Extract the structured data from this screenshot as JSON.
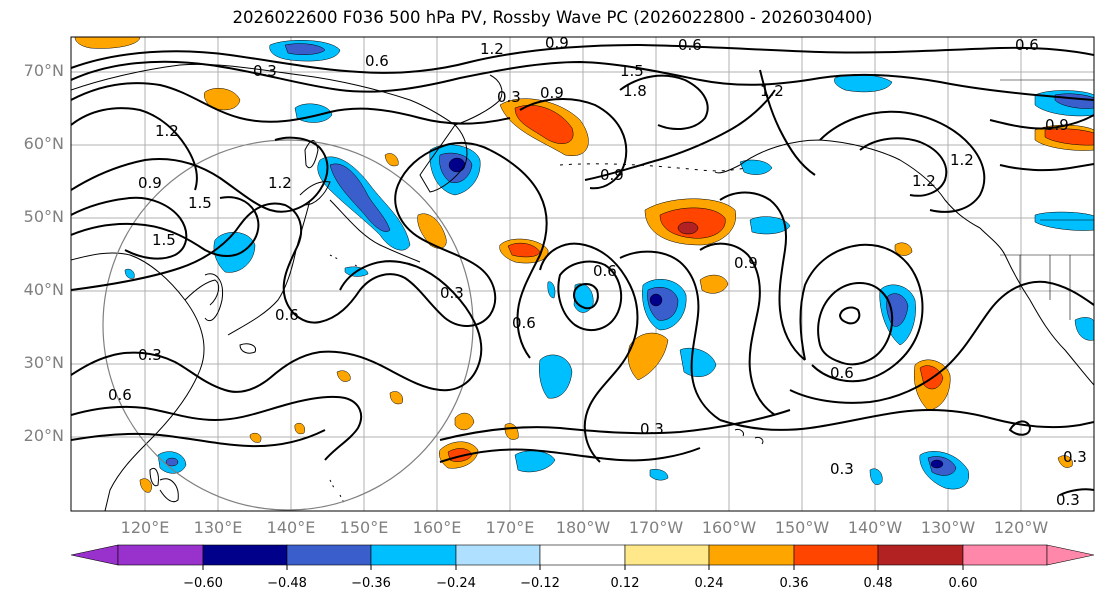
{
  "title": "2026022600 F036 500 hPa PV, Rossby Wave PC (2026022800 - 2026030400)",
  "map": {
    "lat_labels": [
      "70°N",
      "60°N",
      "50°N",
      "40°N",
      "30°N",
      "20°N"
    ],
    "lon_labels": [
      "120°E",
      "130°E",
      "140°E",
      "150°E",
      "160°E",
      "170°E",
      "180°W",
      "170°W",
      "160°W",
      "150°W",
      "140°W",
      "130°W",
      "120°W"
    ],
    "contour_labels": [
      "1.2",
      "0.9",
      "0.6",
      "0.6",
      "0.3",
      "1.2",
      "0.3",
      "0.9",
      "1.5",
      "1.8",
      "1.2",
      "0.9",
      "1.5",
      "1.5",
      "1.2",
      "0.9",
      "0.6",
      "0.3",
      "0.6",
      "0.6",
      "0.9",
      "0.6",
      "0.3",
      "0.6",
      "0.3",
      "0.3",
      "0.3",
      "1.2",
      "1.2",
      "0.9",
      "0.6",
      "0.3"
    ]
  },
  "colorbar": {
    "ticks": [
      "−0.60",
      "−0.48",
      "−0.36",
      "−0.24",
      "−0.12",
      "0.12",
      "0.24",
      "0.36",
      "0.48",
      "0.60"
    ],
    "colors": [
      "#9932cc",
      "#00008b",
      "#3a5fcd",
      "#00bfff",
      "#b0e0ff",
      "#ffffff",
      "#ffe88a",
      "#ffa500",
      "#ff4500",
      "#b22222",
      "#ff88aa"
    ]
  }
}
